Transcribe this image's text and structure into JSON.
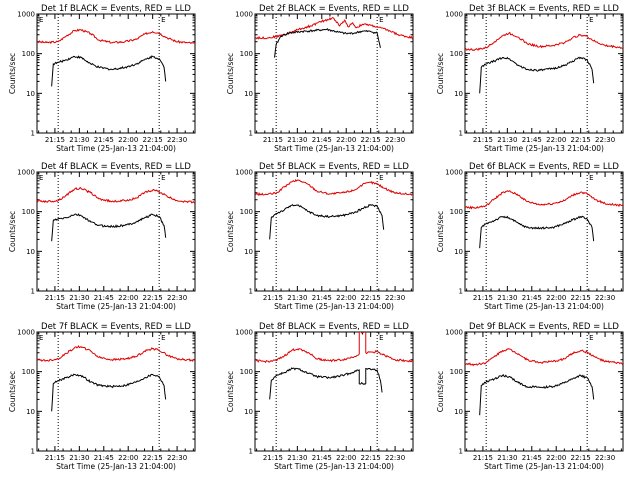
{
  "colors": {
    "events": "#000000",
    "lld": "#e00000",
    "axis": "#000000",
    "background": "#ffffff"
  },
  "chart_data": [
    {
      "type": "line",
      "title": "Det 1f BLACK = Events, RED = LLD",
      "corner_label_left": "E",
      "corner_label_right": "E",
      "xlabel": "Start Time (25-Jan-13 21:04:00)",
      "ylabel": "Counts/sec",
      "y_scale": "log",
      "ylim": [
        1,
        1000
      ],
      "xlim": [
        "21:04",
        "22:41"
      ],
      "x_tick_labels": [
        "21:15",
        "21:30",
        "21:45",
        "22:00",
        "22:15",
        "22:30"
      ],
      "y_tick_labels": [
        "1",
        "10",
        "100",
        "1000"
      ],
      "vlines": [
        "21:17",
        "22:19"
      ],
      "series": [
        {
          "color": "red",
          "x": [
            "21:04",
            "21:10",
            "21:17",
            "21:22",
            "21:27",
            "21:31",
            "21:37",
            "21:42",
            "21:50",
            "21:58",
            "22:05",
            "22:10",
            "22:15",
            "22:19",
            "22:24",
            "22:30",
            "22:36",
            "22:41"
          ],
          "values": [
            200,
            190,
            200,
            280,
            380,
            400,
            320,
            220,
            190,
            200,
            230,
            310,
            360,
            330,
            250,
            200,
            190,
            180
          ]
        },
        {
          "color": "black",
          "x": [
            "21:13",
            "21:14",
            "21:17",
            "21:22",
            "21:27",
            "21:31",
            "21:37",
            "21:42",
            "21:50",
            "21:58",
            "22:05",
            "22:10",
            "22:15",
            "22:19",
            "22:22",
            "22:23"
          ],
          "values": [
            15,
            55,
            60,
            70,
            85,
            80,
            55,
            45,
            40,
            45,
            55,
            70,
            85,
            75,
            45,
            20
          ]
        }
      ]
    },
    {
      "type": "line",
      "title": "Det 2f BLACK = Events, RED = LLD",
      "corner_label_left": "",
      "corner_label_right": "E",
      "xlabel": "Start Time (25-Jan-13 21:04:00)",
      "ylabel": "Counts/sec",
      "y_scale": "log",
      "ylim": [
        1,
        1000
      ],
      "xlim": [
        "21:04",
        "22:41"
      ],
      "x_tick_labels": [
        "21:15",
        "21:30",
        "21:45",
        "22:00",
        "22:15",
        "22:30"
      ],
      "y_tick_labels": [
        "1",
        "10",
        "100",
        "1000"
      ],
      "vlines": [
        "21:17",
        "22:19"
      ],
      "series": [
        {
          "color": "red",
          "x": [
            "21:04",
            "21:12",
            "21:17",
            "21:22",
            "21:30",
            "21:38",
            "21:45",
            "21:52",
            "21:56",
            "21:59",
            "22:01",
            "22:04",
            "22:06",
            "22:10",
            "22:15",
            "22:19",
            "22:25",
            "22:32",
            "22:41"
          ],
          "values": [
            250,
            250,
            270,
            300,
            400,
            500,
            650,
            800,
            500,
            700,
            480,
            600,
            450,
            550,
            520,
            470,
            400,
            300,
            250
          ]
        },
        {
          "color": "black",
          "x": [
            "21:16",
            "21:17",
            "21:20",
            "21:25",
            "21:32",
            "21:40",
            "21:48",
            "21:55",
            "22:00",
            "22:05",
            "22:10",
            "22:15",
            "22:19",
            "22:21"
          ],
          "values": [
            80,
            170,
            280,
            330,
            360,
            380,
            410,
            350,
            320,
            330,
            370,
            360,
            330,
            140
          ]
        }
      ]
    },
    {
      "type": "line",
      "title": "Det 3f BLACK = Events, RED = LLD",
      "corner_label_left": "",
      "corner_label_right": "E",
      "xlabel": "Start Time (25-Jan-13 21:04:00)",
      "ylabel": "Counts/sec",
      "y_scale": "log",
      "ylim": [
        1,
        1000
      ],
      "xlim": [
        "21:04",
        "22:41"
      ],
      "x_tick_labels": [
        "21:15",
        "21:30",
        "21:45",
        "22:00",
        "22:15",
        "22:30"
      ],
      "y_tick_labels": [
        "1",
        "10",
        "100",
        "1000"
      ],
      "vlines": [
        "21:17",
        "22:19"
      ],
      "series": [
        {
          "color": "red",
          "x": [
            "21:04",
            "21:10",
            "21:17",
            "21:22",
            "21:27",
            "21:31",
            "21:37",
            "21:42",
            "21:50",
            "21:58",
            "22:05",
            "22:10",
            "22:15",
            "22:19",
            "22:24",
            "22:30",
            "22:36",
            "22:41"
          ],
          "values": [
            130,
            125,
            140,
            200,
            280,
            330,
            260,
            180,
            150,
            160,
            190,
            250,
            300,
            270,
            200,
            160,
            150,
            140
          ]
        },
        {
          "color": "black",
          "x": [
            "21:13",
            "21:14",
            "21:17",
            "21:22",
            "21:27",
            "21:31",
            "21:37",
            "21:42",
            "21:50",
            "21:58",
            "22:05",
            "22:10",
            "22:15",
            "22:19",
            "22:22",
            "22:23"
          ],
          "values": [
            10,
            45,
            55,
            65,
            80,
            75,
            50,
            40,
            38,
            42,
            50,
            65,
            80,
            70,
            40,
            18
          ]
        }
      ]
    },
    {
      "type": "line",
      "title": "Det 4f BLACK = Events, RED = LLD",
      "corner_label_left": "E",
      "corner_label_right": "E",
      "xlabel": "Start Time (25-Jan-13 21:04:00)",
      "ylabel": "Counts/sec",
      "y_scale": "log",
      "ylim": [
        1,
        1000
      ],
      "xlim": [
        "21:04",
        "22:41"
      ],
      "x_tick_labels": [
        "21:15",
        "21:30",
        "21:45",
        "22:00",
        "22:15",
        "22:30"
      ],
      "y_tick_labels": [
        "1",
        "10",
        "100",
        "1000"
      ],
      "vlines": [
        "21:17",
        "22:19"
      ],
      "series": [
        {
          "color": "red",
          "x": [
            "21:04",
            "21:10",
            "21:17",
            "21:22",
            "21:27",
            "21:31",
            "21:37",
            "21:42",
            "21:50",
            "21:58",
            "22:05",
            "22:10",
            "22:15",
            "22:19",
            "22:24",
            "22:30",
            "22:36",
            "22:41"
          ],
          "values": [
            190,
            180,
            190,
            260,
            370,
            390,
            300,
            210,
            180,
            190,
            220,
            300,
            350,
            320,
            240,
            190,
            180,
            170
          ]
        },
        {
          "color": "black",
          "x": [
            "21:13",
            "21:14",
            "21:17",
            "21:22",
            "21:27",
            "21:31",
            "21:37",
            "21:42",
            "21:50",
            "21:58",
            "22:05",
            "22:10",
            "22:15",
            "22:19",
            "22:22",
            "22:23"
          ],
          "values": [
            18,
            60,
            65,
            70,
            85,
            80,
            55,
            45,
            42,
            45,
            55,
            70,
            85,
            75,
            45,
            22
          ]
        }
      ]
    },
    {
      "type": "line",
      "title": "Det 5f BLACK = Events, RED = LLD",
      "corner_label_left": "",
      "corner_label_right": "E",
      "xlabel": "Start Time (25-Jan-13 21:04:00)",
      "ylabel": "Counts/sec",
      "y_scale": "log",
      "ylim": [
        1,
        1000
      ],
      "xlim": [
        "21:04",
        "22:41"
      ],
      "x_tick_labels": [
        "21:15",
        "21:30",
        "21:45",
        "22:00",
        "22:15",
        "22:30"
      ],
      "y_tick_labels": [
        "1",
        "10",
        "100",
        "1000"
      ],
      "vlines": [
        "21:17",
        "22:19"
      ],
      "series": [
        {
          "color": "red",
          "x": [
            "21:04",
            "21:10",
            "21:17",
            "21:22",
            "21:27",
            "21:31",
            "21:37",
            "21:42",
            "21:50",
            "21:58",
            "22:05",
            "22:10",
            "22:15",
            "22:19",
            "22:24",
            "22:30",
            "22:36",
            "22:41"
          ],
          "values": [
            280,
            270,
            290,
            420,
            580,
            620,
            480,
            330,
            280,
            300,
            350,
            480,
            550,
            500,
            380,
            300,
            280,
            270
          ]
        },
        {
          "color": "black",
          "x": [
            "21:13",
            "21:14",
            "21:17",
            "21:22",
            "21:27",
            "21:31",
            "21:37",
            "21:42",
            "21:50",
            "21:58",
            "22:05",
            "22:10",
            "22:15",
            "22:19",
            "22:22",
            "22:23"
          ],
          "values": [
            20,
            70,
            90,
            110,
            150,
            140,
            100,
            80,
            75,
            80,
            95,
            120,
            150,
            135,
            80,
            35
          ]
        }
      ]
    },
    {
      "type": "line",
      "title": "Det 6f BLACK = Events, RED = LLD",
      "corner_label_left": "",
      "corner_label_right": "E",
      "xlabel": "Start Time (25-Jan-13 21:04:00)",
      "ylabel": "Counts/sec",
      "y_scale": "log",
      "ylim": [
        1,
        1000
      ],
      "xlim": [
        "21:04",
        "22:41"
      ],
      "x_tick_labels": [
        "21:15",
        "21:30",
        "21:45",
        "22:00",
        "22:15",
        "22:30"
      ],
      "y_tick_labels": [
        "1",
        "10",
        "100",
        "1000"
      ],
      "vlines": [
        "21:17",
        "22:19"
      ],
      "series": [
        {
          "color": "red",
          "x": [
            "21:04",
            "21:10",
            "21:17",
            "21:22",
            "21:27",
            "21:31",
            "21:37",
            "21:42",
            "21:50",
            "21:58",
            "22:05",
            "22:10",
            "22:15",
            "22:19",
            "22:24",
            "22:30",
            "22:36",
            "22:41"
          ],
          "values": [
            130,
            125,
            140,
            210,
            300,
            330,
            260,
            180,
            150,
            160,
            190,
            260,
            310,
            280,
            200,
            160,
            150,
            140
          ]
        },
        {
          "color": "black",
          "x": [
            "21:13",
            "21:14",
            "21:17",
            "21:22",
            "21:27",
            "21:31",
            "21:37",
            "21:42",
            "21:50",
            "21:58",
            "22:05",
            "22:10",
            "22:15",
            "22:19",
            "22:22",
            "22:23"
          ],
          "values": [
            12,
            40,
            50,
            60,
            75,
            70,
            50,
            40,
            38,
            40,
            50,
            62,
            75,
            65,
            40,
            18
          ]
        }
      ]
    },
    {
      "type": "line",
      "title": "Det 7f BLACK = Events, RED = LLD",
      "corner_label_left": "E",
      "corner_label_right": "E",
      "xlabel": "Start Time (25-Jan-13 21:04:00)",
      "ylabel": "Counts/sec",
      "y_scale": "log",
      "ylim": [
        1,
        1000
      ],
      "xlim": [
        "21:04",
        "22:41"
      ],
      "x_tick_labels": [
        "21:15",
        "21:30",
        "21:45",
        "22:00",
        "22:15",
        "22:30"
      ],
      "y_tick_labels": [
        "1",
        "10",
        "100",
        "1000"
      ],
      "vlines": [
        "21:17",
        "22:19"
      ],
      "series": [
        {
          "color": "red",
          "x": [
            "21:04",
            "21:10",
            "21:17",
            "21:22",
            "21:27",
            "21:31",
            "21:37",
            "21:42",
            "21:50",
            "21:58",
            "22:05",
            "22:10",
            "22:15",
            "22:19",
            "22:24",
            "22:30",
            "22:36",
            "22:41"
          ],
          "values": [
            200,
            190,
            210,
            290,
            400,
            430,
            330,
            230,
            200,
            210,
            240,
            330,
            380,
            350,
            260,
            210,
            200,
            190
          ]
        },
        {
          "color": "black",
          "x": [
            "21:13",
            "21:14",
            "21:17",
            "21:22",
            "21:27",
            "21:31",
            "21:37",
            "21:42",
            "21:50",
            "21:58",
            "22:05",
            "22:10",
            "22:15",
            "22:19",
            "22:22",
            "22:23"
          ],
          "values": [
            10,
            50,
            60,
            70,
            85,
            80,
            55,
            45,
            42,
            45,
            55,
            70,
            85,
            75,
            45,
            20
          ]
        }
      ]
    },
    {
      "type": "line",
      "title": "Det 8f BLACK = Events, RED = LLD",
      "corner_label_left": "",
      "corner_label_right": "E",
      "xlabel": "Start Time (25-Jan-13 21:04:00)",
      "ylabel": "Counts/sec",
      "y_scale": "log",
      "ylim": [
        1,
        1000
      ],
      "xlim": [
        "21:04",
        "22:41"
      ],
      "x_tick_labels": [
        "21:15",
        "21:30",
        "21:45",
        "22:00",
        "22:15",
        "22:30"
      ],
      "y_tick_labels": [
        "1",
        "10",
        "100",
        "1000"
      ],
      "vlines": [
        "21:17",
        "22:19"
      ],
      "series": [
        {
          "color": "red",
          "x": [
            "21:04",
            "21:10",
            "21:17",
            "21:22",
            "21:27",
            "21:31",
            "21:37",
            "21:42",
            "21:50",
            "21:58",
            "22:05",
            "22:08",
            "22:08",
            "22:12",
            "22:12",
            "22:19",
            "22:24",
            "22:30",
            "22:36",
            "22:41"
          ],
          "values": [
            190,
            180,
            190,
            250,
            350,
            380,
            300,
            210,
            190,
            200,
            240,
            280,
            1000,
            1000,
            300,
            320,
            250,
            200,
            190,
            180
          ]
        },
        {
          "color": "black",
          "x": [
            "21:13",
            "21:14",
            "21:17",
            "21:22",
            "21:27",
            "21:31",
            "21:37",
            "21:42",
            "21:50",
            "21:58",
            "22:05",
            "22:08",
            "22:08",
            "22:12",
            "22:12",
            "22:19",
            "22:21",
            "22:22"
          ],
          "values": [
            20,
            60,
            80,
            95,
            120,
            115,
            90,
            75,
            70,
            80,
            100,
            110,
            50,
            50,
            120,
            110,
            60,
            30
          ]
        }
      ]
    },
    {
      "type": "line",
      "title": "Det 9f BLACK = Events, RED = LLD",
      "corner_label_left": "",
      "corner_label_right": "E",
      "xlabel": "Start Time (25-Jan-13 21:04:00)",
      "ylabel": "Counts/sec",
      "y_scale": "log",
      "ylim": [
        1,
        1000
      ],
      "xlim": [
        "21:04",
        "22:41"
      ],
      "x_tick_labels": [
        "21:15",
        "21:30",
        "21:45",
        "22:00",
        "22:15",
        "22:30"
      ],
      "y_tick_labels": [
        "1",
        "10",
        "100",
        "1000"
      ],
      "vlines": [
        "21:17",
        "22:19"
      ],
      "series": [
        {
          "color": "red",
          "x": [
            "21:04",
            "21:10",
            "21:17",
            "21:22",
            "21:27",
            "21:31",
            "21:37",
            "21:42",
            "21:50",
            "21:58",
            "22:05",
            "22:10",
            "22:15",
            "22:19",
            "22:24",
            "22:30",
            "22:36",
            "22:41"
          ],
          "values": [
            160,
            150,
            170,
            240,
            340,
            370,
            280,
            200,
            170,
            180,
            210,
            290,
            340,
            310,
            230,
            180,
            170,
            160
          ]
        },
        {
          "color": "black",
          "x": [
            "21:13",
            "21:14",
            "21:17",
            "21:22",
            "21:27",
            "21:31",
            "21:37",
            "21:42",
            "21:50",
            "21:58",
            "22:05",
            "22:10",
            "22:15",
            "22:19",
            "22:22",
            "22:23"
          ],
          "values": [
            8,
            45,
            55,
            65,
            80,
            75,
            52,
            42,
            40,
            42,
            52,
            65,
            80,
            70,
            42,
            20
          ]
        }
      ]
    }
  ]
}
